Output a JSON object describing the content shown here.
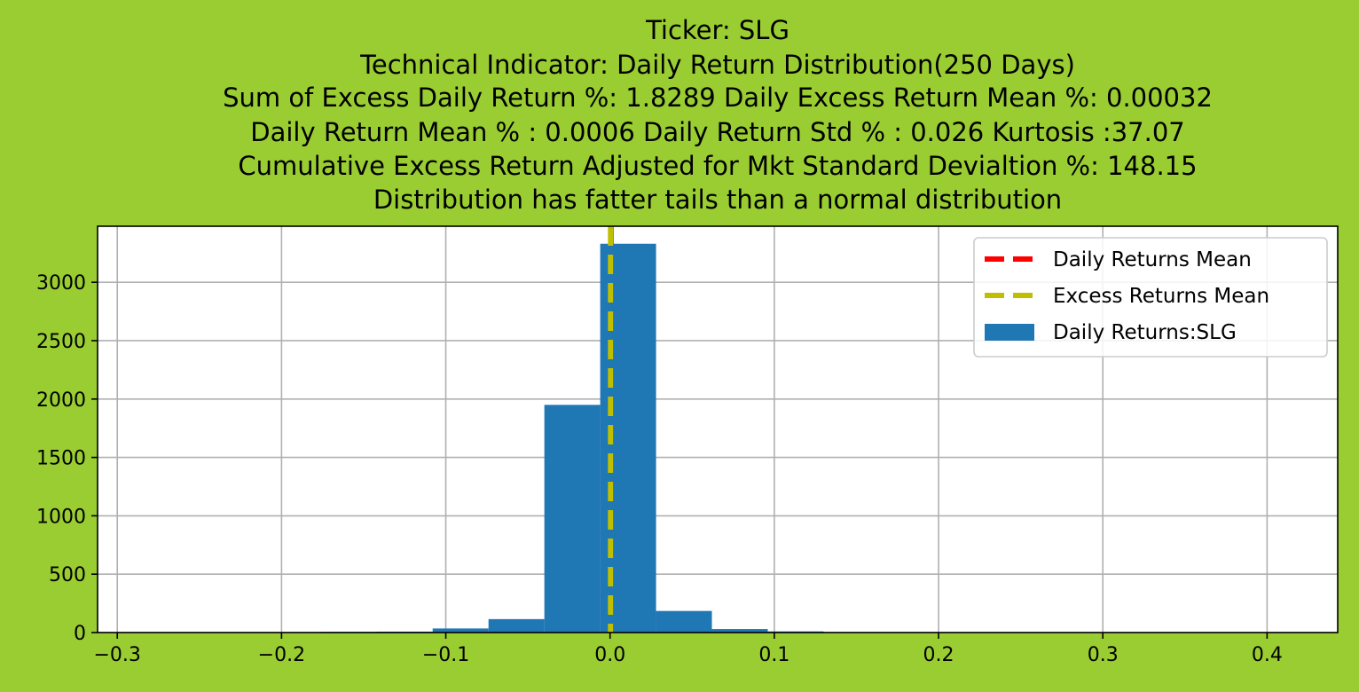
{
  "chart_data": {
    "type": "bar",
    "title_lines": [
      "Ticker: SLG",
      "Technical Indicator: Daily Return Distribution(250 Days)",
      "     Sum of Excess Daily Return %: 1.8289   Daily Excess Return Mean %: 0.00032",
      "     Daily Return Mean % : 0.0006    Daily Return Std % : 0.026  Kurtosis :37.07",
      "     Cumulative Excess Return Adjusted for Mkt Standard Devialtion %: 148.15",
      "Distribution has fatter tails than a normal distribution"
    ],
    "xlabel": "",
    "ylabel": "",
    "xlim": [
      -0.312,
      0.443
    ],
    "ylim": [
      0,
      3480
    ],
    "grid": true,
    "legend_position": "top-right",
    "x_ticks": [
      -0.3,
      -0.2,
      -0.1,
      0.0,
      0.1,
      0.2,
      0.3,
      0.4
    ],
    "x_tick_labels": [
      "−0.3",
      "−0.2",
      "−0.1",
      "0.0",
      "0.1",
      "0.2",
      "0.3",
      "0.4"
    ],
    "y_ticks": [
      0,
      500,
      1000,
      1500,
      2000,
      2500,
      3000
    ],
    "y_tick_labels": [
      "0",
      "500",
      "1000",
      "1500",
      "2000",
      "2500",
      "3000"
    ],
    "histogram": {
      "name": "Daily Returns:SLG",
      "color": "#1f77b4",
      "bins": [
        {
          "x0": -0.278,
          "x1": -0.244,
          "count": 1
        },
        {
          "x0": -0.244,
          "x1": -0.21,
          "count": 1
        },
        {
          "x0": -0.21,
          "x1": -0.176,
          "count": 2
        },
        {
          "x0": -0.176,
          "x1": -0.142,
          "count": 6
        },
        {
          "x0": -0.142,
          "x1": -0.108,
          "count": 8
        },
        {
          "x0": -0.108,
          "x1": -0.074,
          "count": 35
        },
        {
          "x0": -0.074,
          "x1": -0.04,
          "count": 115
        },
        {
          "x0": -0.04,
          "x1": -0.006,
          "count": 1950
        },
        {
          "x0": -0.006,
          "x1": 0.028,
          "count": 3330
        },
        {
          "x0": 0.028,
          "x1": 0.062,
          "count": 185
        },
        {
          "x0": 0.062,
          "x1": 0.096,
          "count": 30
        },
        {
          "x0": 0.096,
          "x1": 0.13,
          "count": 10
        },
        {
          "x0": 0.13,
          "x1": 0.164,
          "count": 3
        },
        {
          "x0": 0.164,
          "x1": 0.198,
          "count": 1
        },
        {
          "x0": 0.198,
          "x1": 0.232,
          "count": 1
        },
        {
          "x0": 0.232,
          "x1": 0.266,
          "count": 0
        },
        {
          "x0": 0.266,
          "x1": 0.3,
          "count": 1
        },
        {
          "x0": 0.3,
          "x1": 0.334,
          "count": 0
        },
        {
          "x0": 0.334,
          "x1": 0.368,
          "count": 0
        },
        {
          "x0": 0.368,
          "x1": 0.402,
          "count": 1
        }
      ]
    },
    "lines": [
      {
        "name": "Daily Returns Mean",
        "x": 0.0006,
        "color": "#ff0000",
        "style": "dashed"
      },
      {
        "name": "Excess Returns Mean",
        "x": 0.00032,
        "color": "#bfbf00",
        "style": "dashed"
      }
    ],
    "legend": [
      {
        "label": "Daily Returns Mean",
        "kind": "line",
        "color": "#ff0000"
      },
      {
        "label": "Excess Returns Mean",
        "kind": "line",
        "color": "#bfbf00"
      },
      {
        "label": "Daily Returns:SLG",
        "kind": "patch",
        "color": "#1f77b4"
      }
    ]
  },
  "colors": {
    "figure_background": "#9acd32",
    "axes_background": "#ffffff",
    "grid": "#b0b0b0"
  }
}
